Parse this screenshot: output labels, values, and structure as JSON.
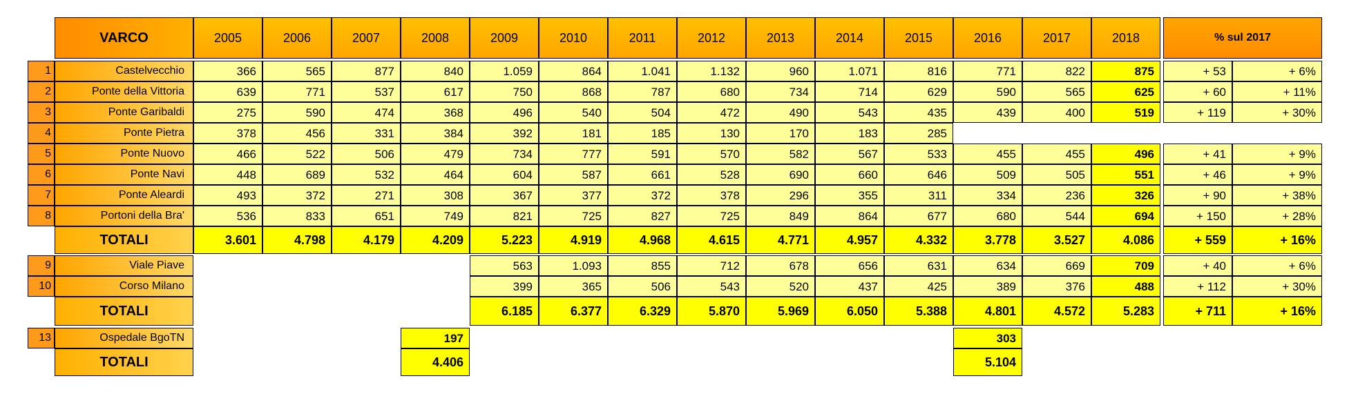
{
  "chart_data": {
    "type": "table",
    "header_label": "VARCO",
    "years": [
      "2005",
      "2006",
      "2007",
      "2008",
      "2009",
      "2010",
      "2011",
      "2012",
      "2013",
      "2014",
      "2015",
      "2016",
      "2017",
      "2018"
    ],
    "pct_header": "% sul 2017",
    "groups": [
      {
        "rows": [
          {
            "num": "1",
            "name": "Castelvecchio",
            "values": [
              "366",
              "565",
              "877",
              "840",
              "1.059",
              "864",
              "1.041",
              "1.132",
              "960",
              "1.071",
              "816",
              "771",
              "822",
              "875"
            ],
            "diff": "+ 53",
            "pct": "+ 6%"
          },
          {
            "num": "2",
            "name": "Ponte della Vittoria",
            "values": [
              "639",
              "771",
              "537",
              "617",
              "750",
              "868",
              "787",
              "680",
              "734",
              "714",
              "629",
              "590",
              "565",
              "625"
            ],
            "diff": "+ 60",
            "pct": "+ 11%"
          },
          {
            "num": "3",
            "name": "Ponte Garibaldi",
            "values": [
              "275",
              "590",
              "474",
              "368",
              "496",
              "540",
              "504",
              "472",
              "490",
              "543",
              "435",
              "439",
              "400",
              "519"
            ],
            "diff": "+ 119",
            "pct": "+ 30%"
          },
          {
            "num": "4",
            "name": "Ponte Pietra",
            "values": [
              "378",
              "456",
              "331",
              "384",
              "392",
              "181",
              "185",
              "130",
              "170",
              "183",
              "285",
              null,
              null,
              null
            ],
            "diff": null,
            "pct": null
          },
          {
            "num": "5",
            "name": "Ponte Nuovo",
            "values": [
              "466",
              "522",
              "506",
              "479",
              "734",
              "777",
              "591",
              "570",
              "582",
              "567",
              "533",
              "455",
              "455",
              "496"
            ],
            "diff": "+ 41",
            "pct": "+ 9%"
          },
          {
            "num": "6",
            "name": "Ponte Navi",
            "values": [
              "448",
              "689",
              "532",
              "464",
              "604",
              "587",
              "661",
              "528",
              "690",
              "660",
              "646",
              "509",
              "505",
              "551"
            ],
            "diff": "+ 46",
            "pct": "+ 9%"
          },
          {
            "num": "7",
            "name": "Ponte Aleardi",
            "values": [
              "493",
              "372",
              "271",
              "308",
              "367",
              "377",
              "372",
              "378",
              "296",
              "355",
              "311",
              "334",
              "236",
              "326"
            ],
            "diff": "+ 90",
            "pct": "+ 38%"
          },
          {
            "num": "8",
            "name": "Portoni della Bra'",
            "values": [
              "536",
              "833",
              "651",
              "749",
              "821",
              "725",
              "827",
              "725",
              "849",
              "864",
              "677",
              "680",
              "544",
              "694"
            ],
            "diff": "+ 150",
            "pct": "+ 28%"
          }
        ],
        "total": {
          "label": "TOTALI",
          "values": [
            "3.601",
            "4.798",
            "4.179",
            "4.209",
            "5.223",
            "4.919",
            "4.968",
            "4.615",
            "4.771",
            "4.957",
            "4.332",
            "3.778",
            "3.527",
            "4.086"
          ],
          "diff": "+ 559",
          "pct": "+ 16%"
        }
      },
      {
        "rows": [
          {
            "num": "9",
            "name": "Viale Piave",
            "values": [
              null,
              null,
              null,
              null,
              "563",
              "1.093",
              "855",
              "712",
              "678",
              "656",
              "631",
              "634",
              "669",
              "709"
            ],
            "diff": "+ 40",
            "pct": "+ 6%"
          },
          {
            "num": "10",
            "name": "Corso Milano",
            "values": [
              null,
              null,
              null,
              null,
              "399",
              "365",
              "506",
              "543",
              "520",
              "437",
              "425",
              "389",
              "376",
              "488"
            ],
            "diff": "+ 112",
            "pct": "+ 30%"
          }
        ],
        "total": {
          "label": "TOTALI",
          "values": [
            null,
            null,
            null,
            null,
            "6.185",
            "6.377",
            "6.329",
            "5.870",
            "5.969",
            "6.050",
            "5.388",
            "4.801",
            "4.572",
            "5.283"
          ],
          "diff": "+ 711",
          "pct": "+ 16%"
        }
      },
      {
        "rows": [
          {
            "num": "13",
            "name": "Ospedale BgoTN",
            "values": [
              null,
              null,
              null,
              "197",
              null,
              null,
              null,
              null,
              null,
              null,
              null,
              "303",
              null,
              null
            ],
            "diff": null,
            "pct": null
          }
        ],
        "total": {
          "label": "TOTALI",
          "values": [
            null,
            null,
            null,
            "4.406",
            null,
            null,
            null,
            null,
            null,
            null,
            null,
            "5.104",
            null,
            null
          ],
          "diff": null,
          "pct": null
        }
      }
    ]
  }
}
